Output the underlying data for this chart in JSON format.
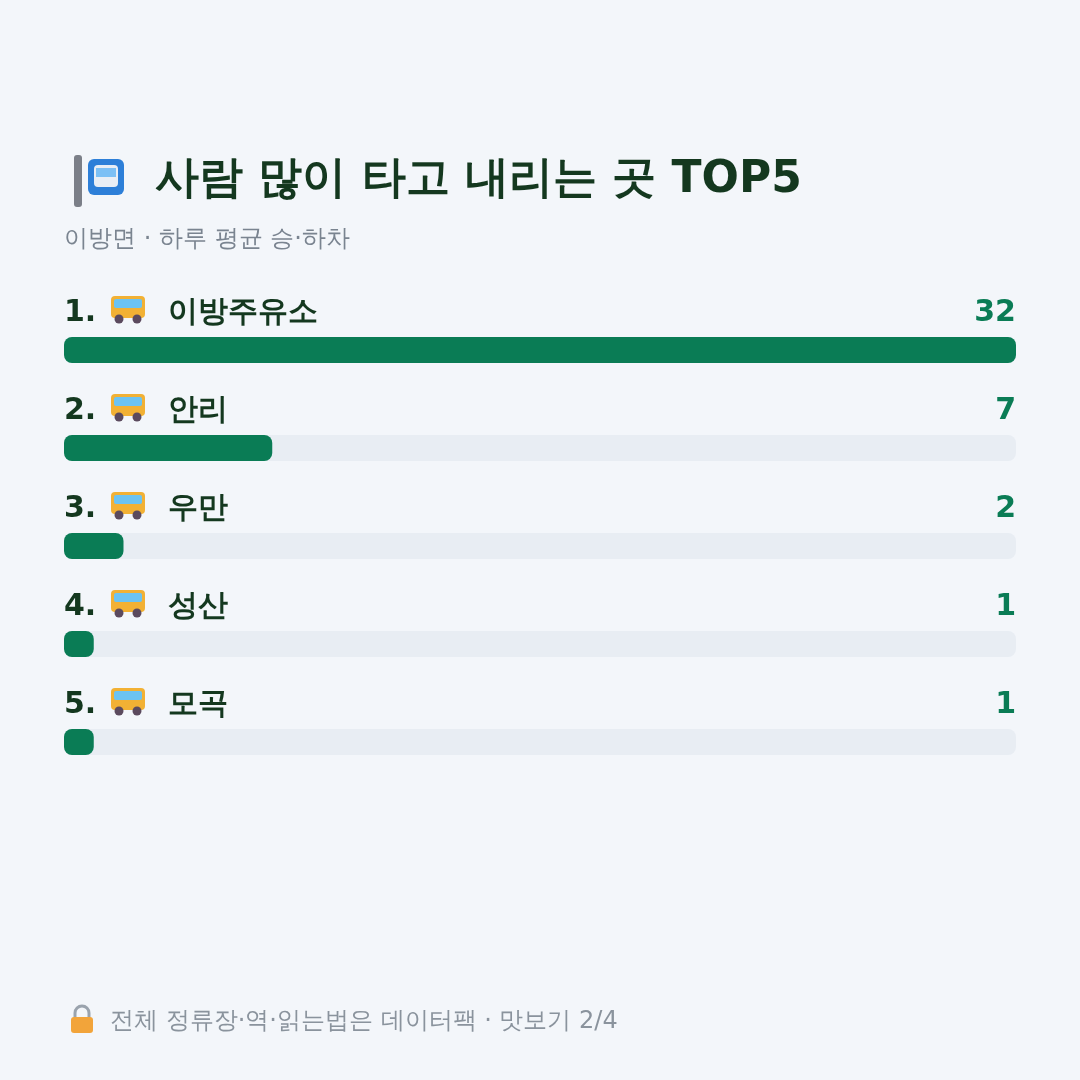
{
  "chart_data": {
    "type": "bar",
    "orientation": "horizontal",
    "title": "사람 많이 타고 내리는 곳 TOP5",
    "subtitle": "이방면 · 하루 평균 승·하차",
    "categories": [
      "1. 이방주유소",
      "2. 안리",
      "3. 우만",
      "4. 성산",
      "5. 모곡"
    ],
    "values": [
      32,
      7,
      2,
      1,
      1
    ],
    "color": "#0a7c55",
    "data_labels": true,
    "annotations": [
      "전체 정류장·역·읽는법은 데이터팩 · 맛보기 2/4"
    ]
  }
}
